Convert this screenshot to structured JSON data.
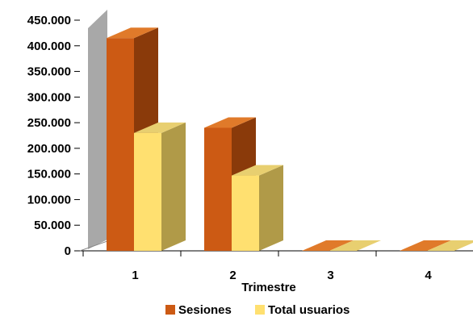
{
  "chart_data": {
    "type": "bar",
    "categories": [
      "1",
      "2",
      "3",
      "4"
    ],
    "xlabel": "Trimestre",
    "ylabel": "",
    "ylim": [
      0,
      450000
    ],
    "y_ticks": [
      "0",
      "50.000",
      "100.000",
      "150.000",
      "200.000",
      "250.000",
      "300.000",
      "350.000",
      "400.000",
      "450.000"
    ],
    "y_tick_values": [
      0,
      50000,
      100000,
      150000,
      200000,
      250000,
      300000,
      350000,
      400000,
      450000
    ],
    "series": [
      {
        "name": "Sesiones",
        "values": [
          415000,
          240000,
          0,
          0
        ],
        "color": "#cc5a14",
        "side_color": "#8a3a0a",
        "top_color": "#e07a2a"
      },
      {
        "name": "Total usuarios",
        "values": [
          230000,
          147000,
          0,
          0
        ],
        "color": "#ffe070",
        "side_color": "#b09a48",
        "top_color": "#e8cf70"
      }
    ],
    "grid": false,
    "legend_position": "bottom",
    "three_d": true
  }
}
